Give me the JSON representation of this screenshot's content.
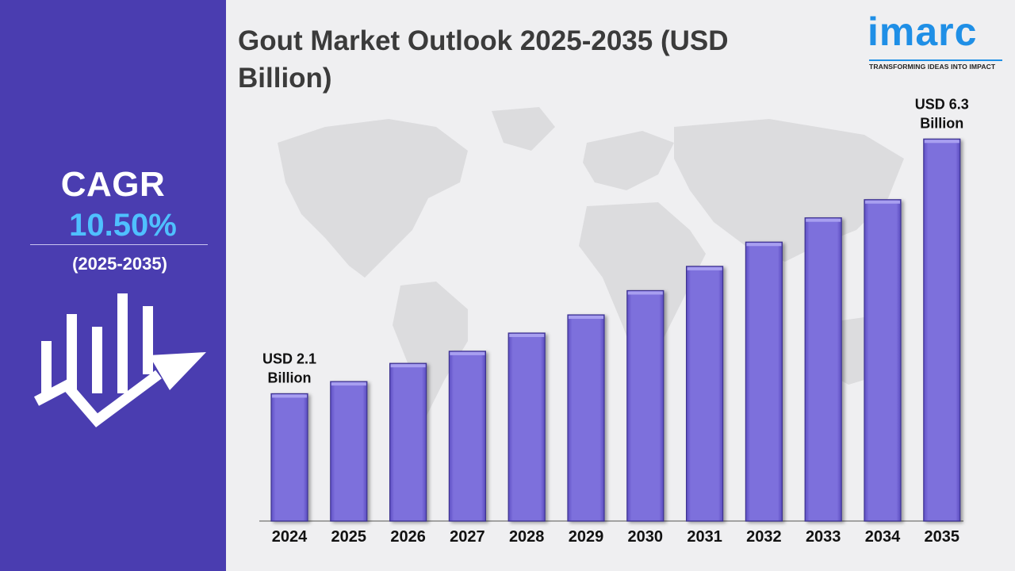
{
  "sidebar": {
    "cagr_label": "CAGR",
    "cagr_value": "10.50%",
    "cagr_period": "(2025-2035)",
    "icon": "growth-chart-arrow-icon"
  },
  "header": {
    "title": "Gout Market Outlook 2025-2035 (USD Billion)"
  },
  "logo": {
    "name": "imarc",
    "tagline": "TRANSFORMING IDEAS INTO IMPACT"
  },
  "colors": {
    "sidebar_bg": "#4a3db0",
    "bar_fill": "#7d6fdc",
    "cagr_value": "#4fc0ff",
    "logo_blue": "#1f8fe6",
    "map_gray": "#dcdcde"
  },
  "chart_data": {
    "type": "bar",
    "title": "Gout Market Outlook 2025-2035 (USD Billion)",
    "xlabel": "",
    "ylabel": "",
    "categories": [
      "2024",
      "2025",
      "2026",
      "2027",
      "2028",
      "2029",
      "2030",
      "2031",
      "2032",
      "2033",
      "2034",
      "2035"
    ],
    "values": [
      2.1,
      2.3,
      2.6,
      2.8,
      3.1,
      3.4,
      3.8,
      4.2,
      4.6,
      5.0,
      5.3,
      6.3
    ],
    "ylim": [
      0,
      6.5
    ],
    "grid": false,
    "legend": "none",
    "annotations": [
      {
        "category": "2024",
        "lines": [
          "USD 2.1",
          "Billion"
        ]
      },
      {
        "category": "2035",
        "lines": [
          "USD 6.3",
          "Billion"
        ]
      }
    ]
  }
}
